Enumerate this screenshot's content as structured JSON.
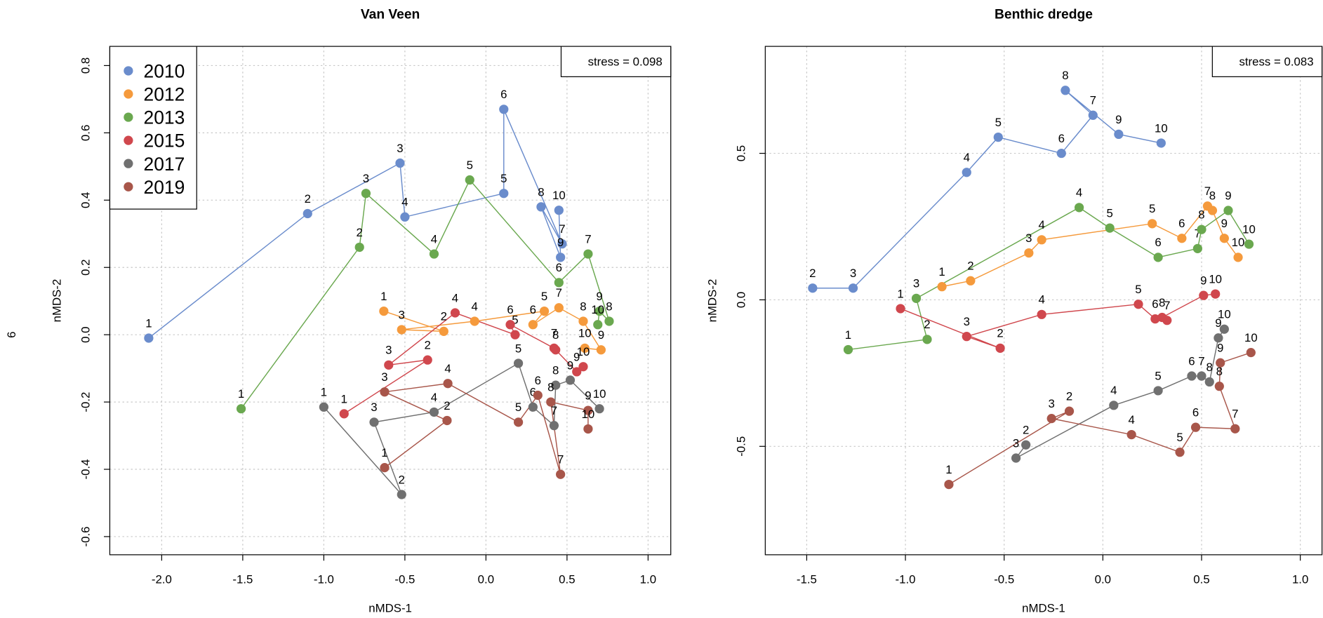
{
  "margin_text": "6",
  "chart_data": [
    {
      "type": "scatter",
      "title": "Van Veen",
      "x_label": "nMDS-1",
      "y_label": "nMDS-2",
      "annotation": "stress = 0.098",
      "legend": "topleft",
      "grid": true,
      "xlim": [
        -2.32,
        1.14
      ],
      "ylim": [
        -0.654,
        0.857
      ],
      "xticks": [
        {
          "value": -2,
          "label": "-2.0"
        },
        -1.5,
        {
          "value": -1,
          "label": "-1.0"
        },
        -0.5,
        {
          "value": 0,
          "label": "0.0"
        },
        0.5,
        {
          "value": 1,
          "label": "1.0"
        }
      ],
      "yticks": [
        0.8,
        0.6,
        0.4,
        0.2,
        {
          "value": 0,
          "label": "0.0"
        },
        -0.2,
        -0.4,
        -0.6
      ],
      "point_labels": [
        "1",
        "2",
        "3",
        "4",
        "5",
        "6",
        "7",
        "8",
        "9",
        "10"
      ],
      "series": [
        {
          "name": "2010",
          "color": "#6a8ccc",
          "x": [
            -2.08,
            -1.1,
            -0.53,
            -0.5,
            0.11,
            0.11,
            0.47,
            0.34,
            0.46,
            0.45
          ],
          "values": [
            -0.01,
            0.36,
            0.51,
            0.35,
            0.42,
            0.67,
            0.27,
            0.38,
            0.23,
            0.37
          ]
        },
        {
          "name": "2012",
          "color": "#f59a3c",
          "x": [
            -0.63,
            -0.26,
            -0.52,
            -0.07,
            0.36,
            0.29,
            0.45,
            0.6,
            0.71,
            0.61
          ],
          "values": [
            0.07,
            0.01,
            0.015,
            0.04,
            0.07,
            0.03,
            0.08,
            0.04,
            -0.045,
            -0.04
          ]
        },
        {
          "name": "2013",
          "color": "#6aa84f",
          "x": [
            -1.51,
            -0.78,
            -0.74,
            -0.32,
            -0.1,
            0.45,
            0.63,
            0.76,
            0.7,
            0.69
          ],
          "values": [
            -0.22,
            0.26,
            0.42,
            0.24,
            0.46,
            0.155,
            0.24,
            0.04,
            0.07,
            0.03
          ]
        },
        {
          "name": "2015",
          "color": "#d0474d",
          "x": [
            -0.875,
            -0.36,
            -0.6,
            -0.19,
            0.18,
            0.15,
            0.42,
            0.43,
            0.56,
            0.6
          ],
          "values": [
            -0.235,
            -0.075,
            -0.09,
            0.065,
            0.0,
            0.03,
            -0.04,
            -0.045,
            -0.11,
            -0.095
          ]
        },
        {
          "name": "2017",
          "color": "#707070",
          "x": [
            -1.0,
            -0.52,
            -0.69,
            -0.32,
            0.2,
            0.29,
            0.42,
            0.43,
            0.52,
            0.7
          ],
          "values": [
            -0.215,
            -0.475,
            -0.26,
            -0.23,
            -0.085,
            -0.215,
            -0.27,
            -0.15,
            -0.135,
            -0.22
          ]
        },
        {
          "name": "2019",
          "color": "#a8564a",
          "x": [
            -0.625,
            -0.24,
            -0.625,
            -0.235,
            0.2,
            0.32,
            0.46,
            0.4,
            0.63,
            0.63
          ],
          "values": [
            -0.395,
            -0.255,
            -0.17,
            -0.145,
            -0.26,
            -0.18,
            -0.415,
            -0.2,
            -0.225,
            -0.28
          ]
        }
      ]
    },
    {
      "type": "scatter",
      "title": "Benthic dredge",
      "x_label": "nMDS-1",
      "y_label": "nMDS-2",
      "annotation": "stress = 0.083",
      "grid": true,
      "xlim": [
        -1.71,
        1.11
      ],
      "ylim": [
        -0.87,
        0.865
      ],
      "xticks": [
        -1.5,
        {
          "value": -1,
          "label": "-1.0"
        },
        -0.5,
        {
          "value": 0,
          "label": "0.0"
        },
        0.5,
        {
          "value": 1,
          "label": "1.0"
        }
      ],
      "yticks": [
        0.5,
        {
          "value": 0,
          "label": "0.0"
        },
        -0.5
      ],
      "point_labels": [
        "1",
        "2",
        "3",
        "4",
        "5",
        "6",
        "7",
        "8",
        "9",
        "10"
      ],
      "series": [
        {
          "color": "#6a8ccc",
          "x": [
            null,
            -1.47,
            -1.265,
            -0.69,
            -0.53,
            -0.21,
            -0.05,
            -0.19,
            0.08,
            0.295
          ],
          "values": [
            null,
            0.04,
            0.04,
            0.435,
            0.555,
            0.5,
            0.63,
            0.715,
            0.565,
            0.535
          ]
        },
        {
          "color": "#f59a3c",
          "x": [
            -0.815,
            -0.67,
            -0.375,
            -0.31,
            0.25,
            0.4,
            0.53,
            0.555,
            0.615,
            0.685
          ],
          "values": [
            0.045,
            0.065,
            0.16,
            0.205,
            0.26,
            0.21,
            0.32,
            0.305,
            0.21,
            0.145
          ]
        },
        {
          "color": "#6aa84f",
          "x": [
            -1.29,
            -0.89,
            -0.945,
            -0.12,
            0.035,
            0.28,
            0.48,
            0.5,
            0.635,
            0.74
          ],
          "values": [
            -0.17,
            -0.135,
            0.005,
            0.315,
            0.245,
            0.145,
            0.175,
            0.24,
            0.305,
            0.19
          ]
        },
        {
          "color": "#d0474d",
          "x": [
            -1.025,
            -0.52,
            -0.69,
            -0.31,
            0.18,
            0.265,
            0.325,
            0.3,
            0.51,
            0.57
          ],
          "values": [
            -0.03,
            -0.165,
            -0.125,
            -0.05,
            -0.015,
            -0.065,
            -0.07,
            -0.06,
            0.015,
            0.02
          ]
        },
        {
          "color": "#707070",
          "x": [
            null,
            -0.39,
            -0.44,
            0.055,
            0.28,
            0.45,
            0.5,
            0.54,
            0.585,
            0.615
          ],
          "values": [
            null,
            -0.495,
            -0.54,
            -0.36,
            -0.31,
            -0.26,
            -0.26,
            -0.28,
            -0.13,
            -0.1
          ]
        },
        {
          "color": "#a8564a",
          "x": [
            -0.78,
            -0.17,
            -0.26,
            0.145,
            0.39,
            0.47,
            0.67,
            0.59,
            0.595,
            0.75
          ],
          "values": [
            -0.63,
            -0.38,
            -0.405,
            -0.46,
            -0.52,
            -0.435,
            -0.44,
            -0.295,
            -0.215,
            -0.18
          ]
        }
      ]
    }
  ]
}
